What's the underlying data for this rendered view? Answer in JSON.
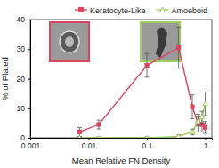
{
  "chart_data": {
    "type": "line",
    "x_label": "Mean Relative FN Density",
    "y_label": "% of Plated",
    "log": "x",
    "legend": "top",
    "xlim": [
      0.001,
      1.3
    ],
    "xticks": [
      0.001,
      0.01,
      0.1,
      1
    ],
    "ylim": [
      0,
      40
    ],
    "yticks": [
      0,
      10,
      20,
      30,
      40
    ],
    "series": [
      {
        "name": "Keratocyte-Like",
        "color": "#d9455f",
        "marker": "square",
        "line_style": "solid",
        "x": [
          0.007,
          0.015,
          0.1,
          0.35,
          0.6,
          0.75,
          0.88,
          1.0
        ],
        "values": [
          2,
          4.5,
          24.5,
          30.5,
          10.5,
          5,
          4.5,
          3.5
        ],
        "errors": [
          1.5,
          1.5,
          4,
          7,
          4,
          3,
          2.5,
          2
        ]
      },
      {
        "name": "Amoeboid",
        "color": "#9fd05a",
        "marker": "triangle",
        "line_style": "solid",
        "x": [
          0.007,
          0.015,
          0.1,
          0.35,
          0.6,
          0.75,
          0.88,
          1.0
        ],
        "values": [
          0,
          0,
          0,
          0.5,
          2,
          5.5,
          7,
          11.5
        ],
        "errors": [
          0.3,
          0.3,
          0.3,
          0.5,
          1,
          1.5,
          2,
          4
        ]
      }
    ]
  }
}
